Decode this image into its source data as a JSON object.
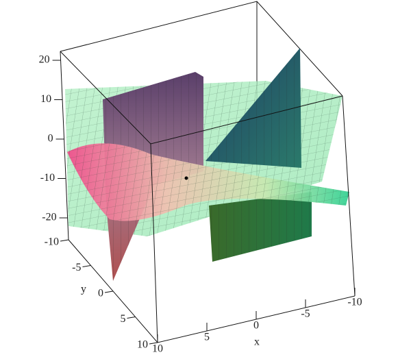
{
  "chart_data": {
    "type": "surface3d",
    "xlabel": "x",
    "ylabel": "y",
    "xlim": [
      10,
      -10
    ],
    "xticks": [
      10,
      5,
      0,
      -5,
      -10
    ],
    "ylim": [
      -10,
      10
    ],
    "yticks": [
      -10,
      -5,
      0,
      5,
      10
    ],
    "zlim": [
      -20,
      20
    ],
    "zticks": [
      20,
      10,
      0,
      -10,
      -20
    ]
  }
}
